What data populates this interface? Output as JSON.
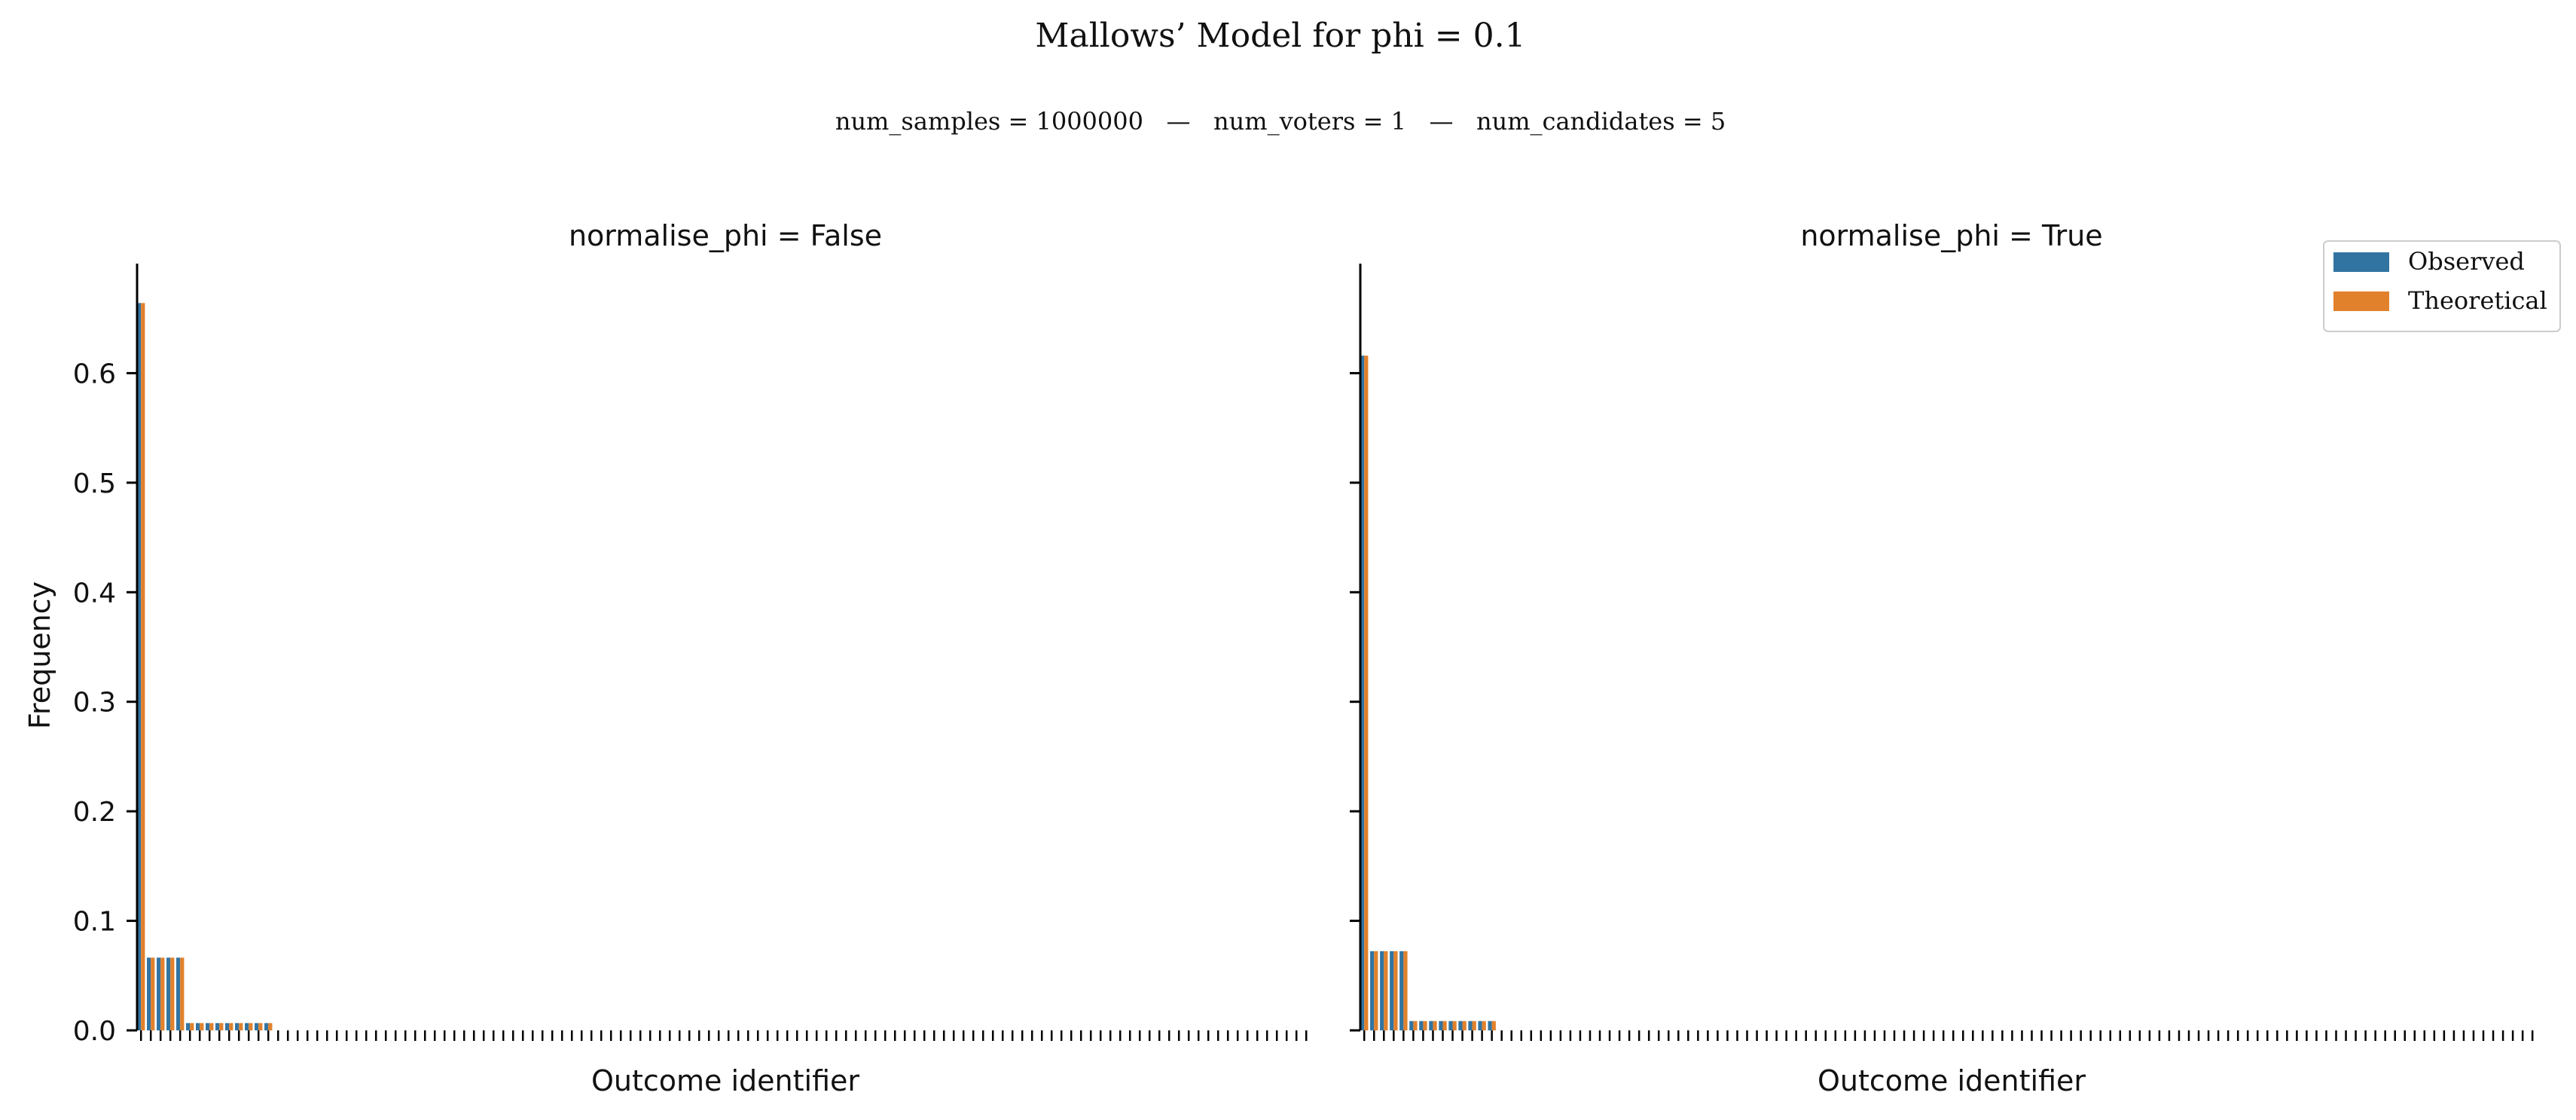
{
  "figure": {
    "title": "Mallows’ Model for phi = 0.1",
    "subtitle": "num_samples = 1000000   —   num_voters = 1   —   num_candidates = 5"
  },
  "legend": {
    "placement": "top-right",
    "entries": [
      {
        "label": "Observed",
        "color": "#3274a1"
      },
      {
        "label": "Theoretical",
        "color": "#e1812c"
      }
    ]
  },
  "chart_data": [
    {
      "type": "bar",
      "title": "normalise_phi = False",
      "xlabel": "Outcome identifier",
      "ylabel": "Frequency",
      "ylim": [
        0,
        0.7
      ],
      "yticks": [
        0.0,
        0.1,
        0.2,
        0.3,
        0.4,
        0.5,
        0.6
      ],
      "ytick_labels": [
        "0.0",
        "0.1",
        "0.2",
        "0.3",
        "0.4",
        "0.5",
        "0.6"
      ],
      "num_categories": 120,
      "series": [
        {
          "name": "Observed",
          "color": "#3274a1",
          "values": [
            0.664,
            0.0664,
            0.0664,
            0.0664,
            0.0664,
            0.00664,
            0.00664,
            0.00664,
            0.00664,
            0.00664,
            0.00664,
            0.00664,
            0.00664,
            0.00664
          ]
        },
        {
          "name": "Theoretical",
          "color": "#e1812c",
          "values": [
            0.664,
            0.0664,
            0.0664,
            0.0664,
            0.0664,
            0.00664,
            0.00664,
            0.00664,
            0.00664,
            0.00664,
            0.00664,
            0.00664,
            0.00664,
            0.00664
          ]
        }
      ]
    },
    {
      "type": "bar",
      "title": "normalise_phi = True",
      "xlabel": "Outcome identifier",
      "ylabel": "",
      "ylim": [
        0,
        0.7
      ],
      "yticks": [
        0.0,
        0.1,
        0.2,
        0.3,
        0.4,
        0.5,
        0.6
      ],
      "ytick_labels": [],
      "num_categories": 120,
      "series": [
        {
          "name": "Observed",
          "color": "#3274a1",
          "values": [
            0.616,
            0.0723,
            0.0723,
            0.0723,
            0.0723,
            0.0085,
            0.0085,
            0.0085,
            0.0085,
            0.0085,
            0.0085,
            0.0085,
            0.0085,
            0.0085
          ]
        },
        {
          "name": "Theoretical",
          "color": "#e1812c",
          "values": [
            0.616,
            0.0723,
            0.0723,
            0.0723,
            0.0723,
            0.0085,
            0.0085,
            0.0085,
            0.0085,
            0.0085,
            0.0085,
            0.0085,
            0.0085,
            0.0085
          ]
        }
      ]
    }
  ]
}
